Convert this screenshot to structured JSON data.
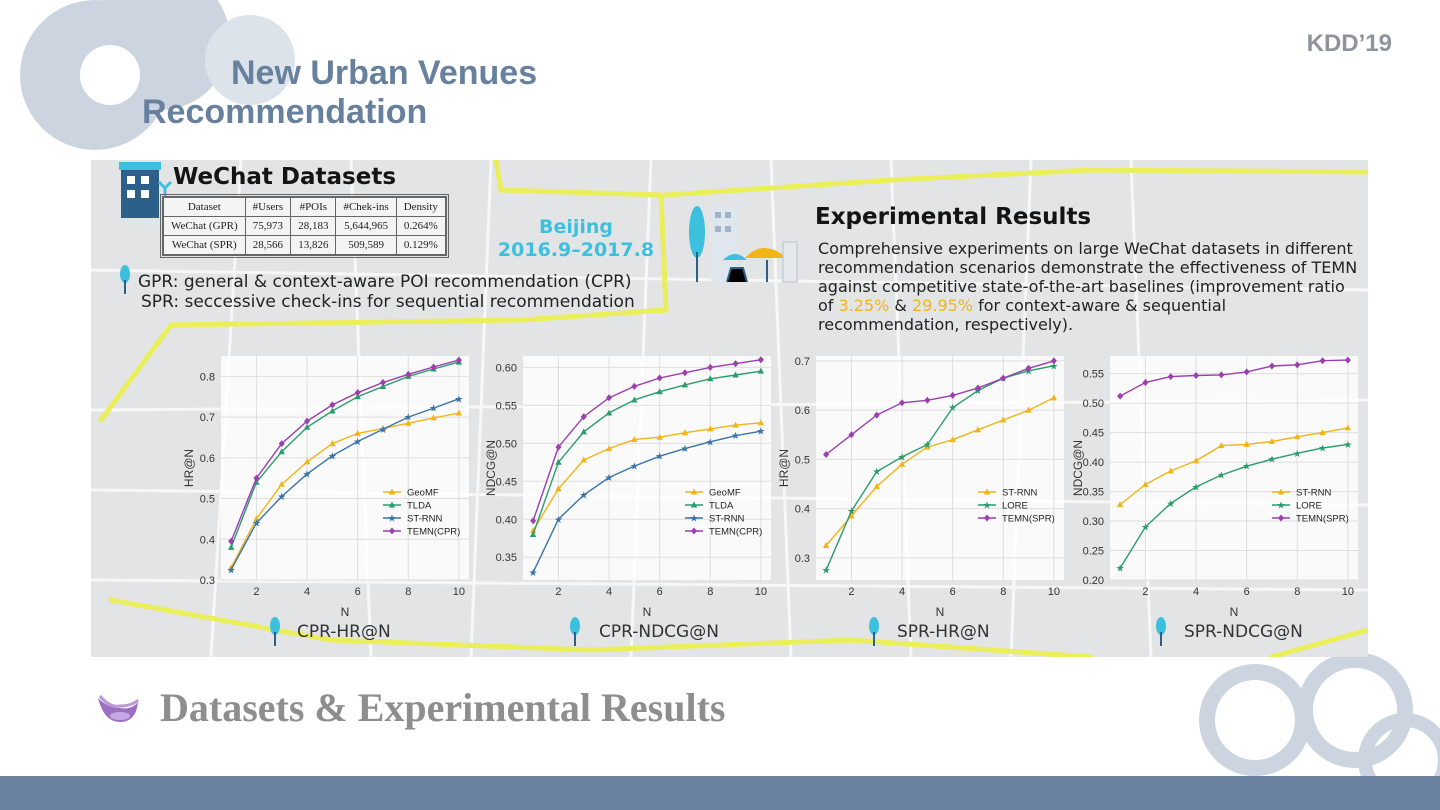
{
  "slide": {
    "conference": "KDD’19",
    "title_line1": "New Urban Venues",
    "title_line2": "Recommendation",
    "section_title": "Datasets & Experimental Results"
  },
  "datasets": {
    "heading": "WeChat Datasets",
    "columns": [
      "Dataset",
      "#Users",
      "#POIs",
      "#Chek-ins",
      "Density"
    ],
    "rows": [
      [
        "WeChat (GPR)",
        "75,973",
        "28,183",
        "5,644,965",
        "0.264%"
      ],
      [
        "WeChat (SPR)",
        "28,566",
        "13,826",
        "509,589",
        "0.129%"
      ]
    ],
    "location": "Beijing",
    "period": "2016.9–2017.8",
    "notes": [
      "GPR: general & context-aware POI recommendation (CPR)",
      "SPR: seccessive check-ins for sequential recommendation"
    ]
  },
  "experimental": {
    "heading": "Experimental Results",
    "text_before": "Comprehensive experiments on large WeChat datasets in different recommendation scenarios demonstrate the effectiveness of TEMN against competitive state-of-the-art baselines (improvement ratio of ",
    "ratio1": "3.25%",
    "text_mid": " & ",
    "ratio2": "29.95%",
    "text_after": " for context-aware & sequential recommendation, respectively)."
  },
  "colors": {
    "title": "#66809e",
    "accent_yellow": "#f2b416",
    "beijing": "#3cc0de",
    "bar": "#6b82a0",
    "GeoMF": "#f2b416",
    "TLDA": "#2a9d6a",
    "ST-RNN": "#3a74a8",
    "TEMN": "#9c3db0",
    "LORE": "#2a9d6a"
  },
  "chart_data": [
    {
      "type": "line",
      "caption": "CPR-HR@N",
      "xlabel": "N",
      "ylabel": "HR@N",
      "x": [
        1,
        2,
        3,
        4,
        5,
        6,
        7,
        8,
        9,
        10
      ],
      "xticks": [
        2,
        4,
        6,
        8,
        10
      ],
      "yticks": [
        0.3,
        0.4,
        0.5,
        0.6,
        0.7,
        0.8
      ],
      "xlim": [
        0.6,
        10.4
      ],
      "ylim": [
        0.3,
        0.85
      ],
      "grid": true,
      "legend": "right",
      "series": [
        {
          "name": "GeoMF",
          "color": "#f2b416",
          "marker": "^",
          "values": [
            0.33,
            0.45,
            0.535,
            0.59,
            0.635,
            0.66,
            0.672,
            0.685,
            0.698,
            0.71
          ]
        },
        {
          "name": "TLDA",
          "color": "#2a9d6a",
          "marker": "^",
          "values": [
            0.38,
            0.54,
            0.615,
            0.675,
            0.715,
            0.75,
            0.775,
            0.8,
            0.818,
            0.835
          ]
        },
        {
          "name": "ST-RNN",
          "color": "#3a74a8",
          "marker": "*",
          "values": [
            0.325,
            0.44,
            0.505,
            0.56,
            0.605,
            0.64,
            0.67,
            0.7,
            0.722,
            0.745
          ]
        },
        {
          "name": "TEMN(CPR)",
          "color": "#9c3db0",
          "marker": "d",
          "values": [
            0.395,
            0.55,
            0.635,
            0.69,
            0.73,
            0.76,
            0.785,
            0.805,
            0.823,
            0.84
          ]
        }
      ]
    },
    {
      "type": "line",
      "caption": "CPR-NDCG@N",
      "xlabel": "N",
      "ylabel": "NDCG@N",
      "x": [
        1,
        2,
        3,
        4,
        5,
        6,
        7,
        8,
        9,
        10
      ],
      "xticks": [
        2,
        4,
        6,
        8,
        10
      ],
      "yticks": [
        0.35,
        0.4,
        0.45,
        0.5,
        0.55,
        0.6
      ],
      "xlim": [
        0.6,
        10.4
      ],
      "ylim": [
        0.32,
        0.615
      ],
      "grid": true,
      "legend": "right",
      "series": [
        {
          "name": "GeoMF",
          "color": "#f2b416",
          "marker": "^",
          "values": [
            0.385,
            0.44,
            0.478,
            0.493,
            0.505,
            0.508,
            0.514,
            0.519,
            0.524,
            0.527
          ]
        },
        {
          "name": "TLDA",
          "color": "#2a9d6a",
          "marker": "^",
          "values": [
            0.38,
            0.475,
            0.515,
            0.54,
            0.557,
            0.568,
            0.577,
            0.585,
            0.59,
            0.595
          ]
        },
        {
          "name": "ST-RNN",
          "color": "#3a74a8",
          "marker": "*",
          "values": [
            0.33,
            0.4,
            0.432,
            0.455,
            0.47,
            0.483,
            0.493,
            0.502,
            0.51,
            0.516
          ]
        },
        {
          "name": "TEMN(CPR)",
          "color": "#9c3db0",
          "marker": "d",
          "values": [
            0.398,
            0.495,
            0.535,
            0.56,
            0.575,
            0.586,
            0.593,
            0.6,
            0.605,
            0.61
          ]
        }
      ]
    },
    {
      "type": "line",
      "caption": "SPR-HR@N",
      "xlabel": "N",
      "ylabel": "HR@N",
      "x": [
        1,
        2,
        3,
        4,
        5,
        6,
        7,
        8,
        9,
        10
      ],
      "xticks": [
        2,
        4,
        6,
        8,
        10
      ],
      "yticks": [
        0.3,
        0.4,
        0.5,
        0.6,
        0.7
      ],
      "xlim": [
        0.6,
        10.4
      ],
      "ylim": [
        0.255,
        0.71
      ],
      "grid": true,
      "legend": "right",
      "series": [
        {
          "name": "ST-RNN",
          "color": "#f2b416",
          "marker": "^",
          "values": [
            0.325,
            0.385,
            0.445,
            0.49,
            0.525,
            0.54,
            0.56,
            0.58,
            0.6,
            0.625
          ]
        },
        {
          "name": "LORE",
          "color": "#2a9d6a",
          "marker": "*",
          "values": [
            0.275,
            0.395,
            0.475,
            0.505,
            0.53,
            0.605,
            0.64,
            0.665,
            0.68,
            0.69
          ]
        },
        {
          "name": "TEMN(SPR)",
          "color": "#9c3db0",
          "marker": "d",
          "values": [
            0.51,
            0.55,
            0.59,
            0.615,
            0.62,
            0.63,
            0.645,
            0.665,
            0.685,
            0.7
          ]
        }
      ]
    },
    {
      "type": "line",
      "caption": "SPR-NDCG@N",
      "xlabel": "N",
      "ylabel": "NDCG@N",
      "x": [
        1,
        2,
        3,
        4,
        5,
        6,
        7,
        8,
        9,
        10
      ],
      "xticks": [
        2,
        4,
        6,
        8,
        10
      ],
      "yticks": [
        0.2,
        0.25,
        0.3,
        0.35,
        0.4,
        0.45,
        0.5,
        0.55
      ],
      "xlim": [
        0.6,
        10.4
      ],
      "ylim": [
        0.2,
        0.58
      ],
      "grid": true,
      "legend": "right",
      "series": [
        {
          "name": "ST-RNN",
          "color": "#f2b416",
          "marker": "^",
          "values": [
            0.328,
            0.362,
            0.385,
            0.402,
            0.428,
            0.43,
            0.435,
            0.443,
            0.45,
            0.458
          ]
        },
        {
          "name": "LORE",
          "color": "#2a9d6a",
          "marker": "*",
          "values": [
            0.22,
            0.29,
            0.33,
            0.358,
            0.378,
            0.393,
            0.405,
            0.415,
            0.424,
            0.43
          ]
        },
        {
          "name": "TEMN(SPR)",
          "color": "#9c3db0",
          "marker": "d",
          "values": [
            0.512,
            0.535,
            0.545,
            0.547,
            0.548,
            0.553,
            0.563,
            0.565,
            0.572,
            0.573
          ]
        }
      ]
    }
  ]
}
